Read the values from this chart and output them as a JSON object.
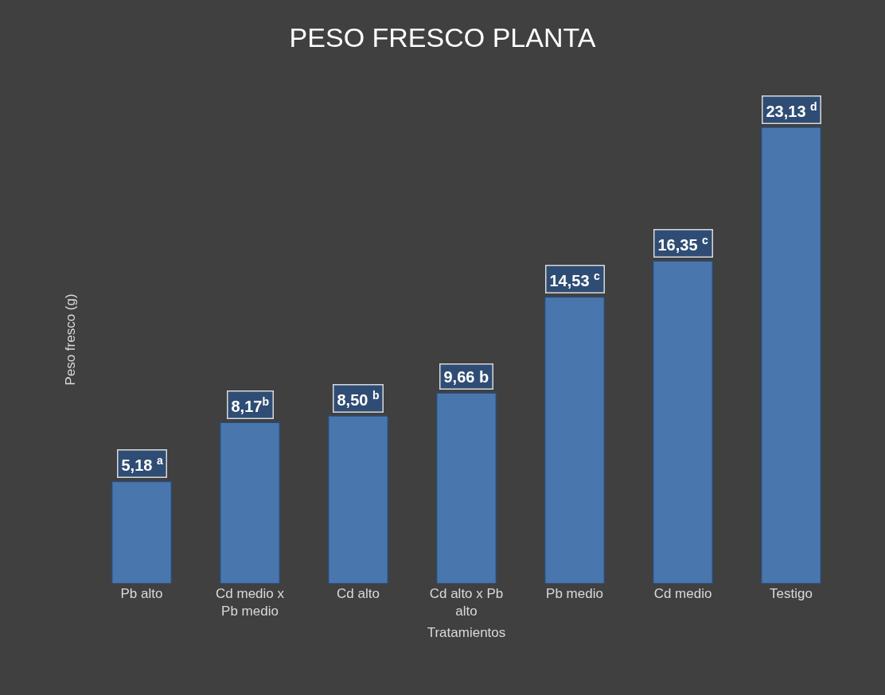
{
  "chart_data": {
    "type": "bar",
    "title": "PESO FRESCO PLANTA",
    "xlabel": "Tratamientos",
    "ylabel": "Peso fresco (g)",
    "categories": [
      "Pb alto",
      "Cd medio x Pb medio",
      "Cd alto",
      "Cd alto x Pb alto",
      "Pb medio",
      "Cd medio",
      "Testigo"
    ],
    "values": [
      5.18,
      8.17,
      8.5,
      9.66,
      14.53,
      16.35,
      23.13
    ],
    "value_labels": [
      "5,18 $^{a}$",
      "8,17$^{b}$",
      "8,50 $^{b}$",
      "9,66 b",
      "14,53 $^{c}$",
      "16,35 $^{c}$",
      "23,13 $^{d}$"
    ],
    "color": "#4a76ae"
  }
}
